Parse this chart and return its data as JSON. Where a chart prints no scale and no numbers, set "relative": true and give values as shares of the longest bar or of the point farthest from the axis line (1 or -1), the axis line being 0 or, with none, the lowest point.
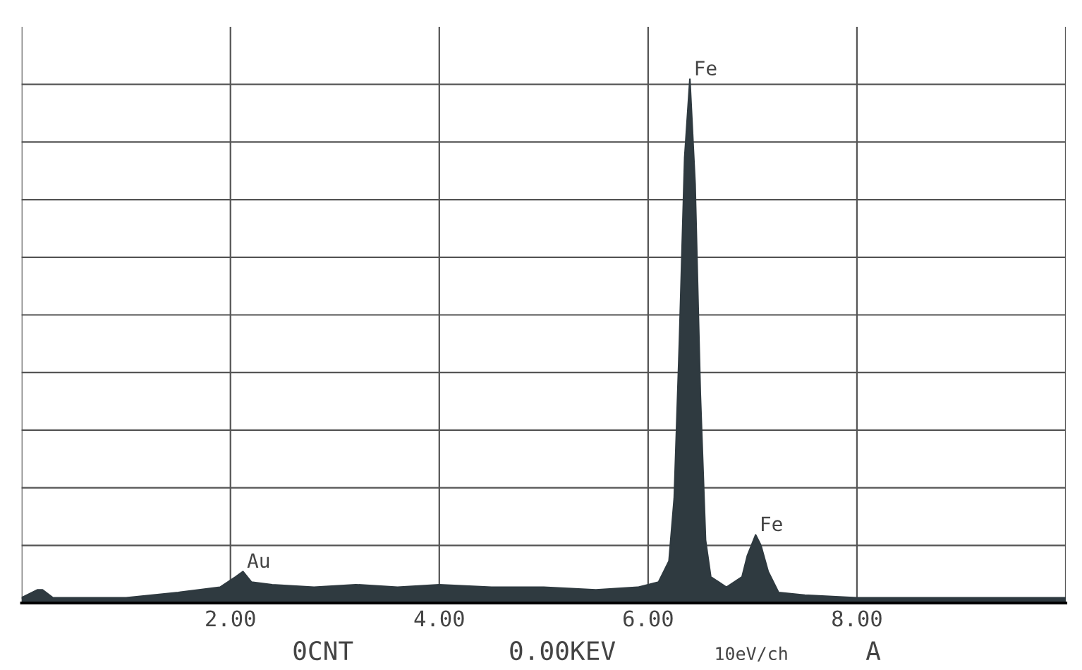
{
  "chart_data": {
    "type": "area",
    "relative": true,
    "color": "#2f3a40",
    "x": [
      0,
      0.15,
      0.2,
      0.3,
      0.5,
      1.0,
      1.5,
      1.9,
      2.05,
      2.12,
      2.2,
      2.4,
      2.8,
      3.2,
      3.6,
      4.0,
      4.5,
      5.0,
      5.5,
      5.9,
      6.1,
      6.2,
      6.25,
      6.3,
      6.35,
      6.4,
      6.45,
      6.5,
      6.55,
      6.6,
      6.75,
      6.9,
      6.95,
      7.03,
      7.08,
      7.15,
      7.25,
      7.5,
      8.0,
      8.5,
      9.0,
      9.5,
      10
    ],
    "values": [
      0.01,
      0.025,
      0.025,
      0.01,
      0.01,
      0.01,
      0.02,
      0.03,
      0.05,
      0.06,
      0.04,
      0.035,
      0.03,
      0.035,
      0.03,
      0.035,
      0.03,
      0.03,
      0.025,
      0.03,
      0.04,
      0.08,
      0.2,
      0.5,
      0.85,
      1.0,
      0.8,
      0.4,
      0.12,
      0.05,
      0.03,
      0.05,
      0.09,
      0.13,
      0.11,
      0.06,
      0.02,
      0.015,
      0.01,
      0.01,
      0.01,
      0.01,
      0.01
    ],
    "xlim": [
      0,
      10
    ],
    "xticks": [
      {
        "value": 0,
        "label": null
      },
      {
        "value": 2,
        "label": "2.00"
      },
      {
        "value": 4,
        "label": "4.00"
      },
      {
        "value": 6,
        "label": "6.00"
      },
      {
        "value": 8,
        "label": "8.00"
      },
      {
        "value": 10,
        "label": null
      }
    ],
    "grid": true,
    "annotations": [
      {
        "text": "Au",
        "x": 2.12,
        "y": 0.06
      },
      {
        "text": "Fe",
        "x": 6.4,
        "y": 1.0
      },
      {
        "text": "Fe",
        "x": 7.03,
        "y": 0.13
      },
      "0CNT",
      "0.00KEV",
      "10eV/ch",
      "A"
    ]
  }
}
